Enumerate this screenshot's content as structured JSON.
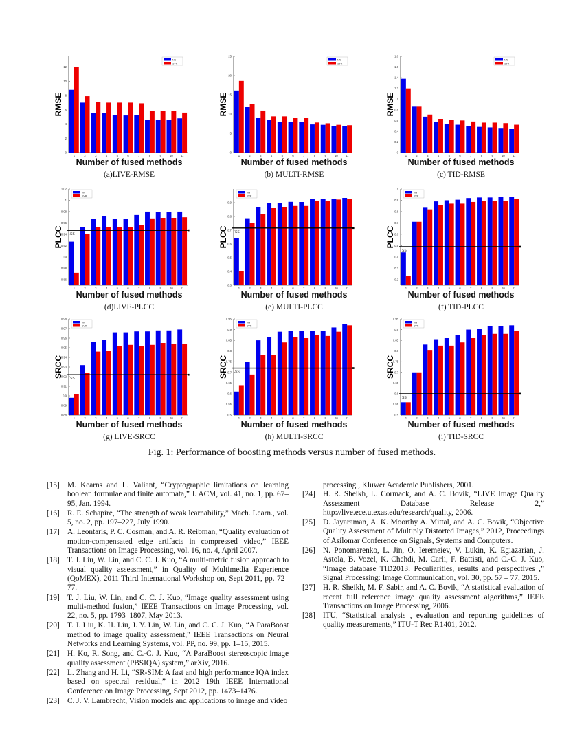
{
  "legend": [
    "NN",
    "SVR"
  ],
  "colors": {
    "NN": "#0000ee",
    "SVR": "#ee0000"
  },
  "x_title": "Number of fused methods",
  "chart_data": [
    {
      "type": "bar",
      "id": "live-rmse",
      "caption": "(a)LIVE-RMSE",
      "ylabel": "RMSE",
      "xlabel": "Number of fused methods",
      "categories": [
        "1",
        "2",
        "3",
        "4",
        "5",
        "6",
        "7",
        "8",
        "9",
        "10",
        "11"
      ],
      "ylim": [
        0,
        13.5
      ],
      "yticks": [
        0,
        2,
        4,
        6,
        8,
        10,
        12
      ],
      "legend": "top-right",
      "series": [
        {
          "name": "NN",
          "values": [
            8.8,
            7.0,
            5.5,
            5.5,
            5.3,
            5.2,
            5.3,
            4.6,
            4.6,
            4.6,
            4.8
          ]
        },
        {
          "name": "SVR",
          "values": [
            12.0,
            7.9,
            7.1,
            7.0,
            7.0,
            7.0,
            6.9,
            5.8,
            5.8,
            5.8,
            5.6
          ]
        }
      ]
    },
    {
      "type": "bar",
      "id": "multi-rmse",
      "caption": "(b) MULTI-RMSE",
      "ylabel": "RMSE",
      "xlabel": "Number of fused methods",
      "categories": [
        "1",
        "2",
        "3",
        "4",
        "5",
        "6",
        "7",
        "8",
        "9",
        "10",
        "11"
      ],
      "ylim": [
        0,
        25
      ],
      "yticks": [
        0,
        5,
        10,
        15,
        20,
        25
      ],
      "legend": "top-right",
      "series": [
        {
          "name": "NN",
          "values": [
            16.1,
            11.8,
            9.0,
            8.4,
            8.0,
            8.0,
            7.9,
            7.3,
            7.2,
            6.8,
            6.8
          ]
        },
        {
          "name": "SVR",
          "values": [
            18.6,
            12.5,
            10.9,
            9.4,
            9.4,
            9.1,
            9.0,
            7.8,
            7.6,
            7.2,
            7.1
          ]
        }
      ]
    },
    {
      "type": "bar",
      "id": "tid-rmse",
      "caption": "(c) TID-RMSE",
      "ylabel": "RMSE",
      "xlabel": "Number of fused methods",
      "categories": [
        "1",
        "2",
        "3",
        "4",
        "5",
        "6",
        "7",
        "8",
        "9",
        "10",
        "11"
      ],
      "ylim": [
        0,
        1.8
      ],
      "yticks": [
        0,
        0.2,
        0.4,
        0.6,
        0.8,
        1,
        1.2,
        1.4,
        1.6,
        1.8
      ],
      "legend": "top-right",
      "series": [
        {
          "name": "NN",
          "values": [
            1.38,
            0.87,
            0.67,
            0.57,
            0.54,
            0.52,
            0.49,
            0.48,
            0.47,
            0.46,
            0.45
          ]
        },
        {
          "name": "SVR",
          "values": [
            1.2,
            0.87,
            0.71,
            0.63,
            0.61,
            0.6,
            0.58,
            0.56,
            0.56,
            0.55,
            0.52
          ]
        }
      ]
    },
    {
      "type": "bar",
      "id": "live-plcc",
      "caption": "(d)LIVE-PLCC",
      "ylabel": "PLCC",
      "xlabel": "Number of fused methods",
      "categories": [
        "1",
        "2",
        "3",
        "4",
        "5",
        "6",
        "7",
        "8",
        "9",
        "10",
        "11"
      ],
      "ylim": [
        0.85,
        1.02
      ],
      "yticks": [
        0.86,
        0.88,
        0.9,
        0.92,
        0.94,
        0.96,
        0.98,
        1,
        1.02
      ],
      "legend": "top-left",
      "baseline": {
        "label": "SS",
        "value": 0.947
      },
      "series": [
        {
          "name": "NN",
          "values": [
            0.927,
            0.953,
            0.967,
            0.972,
            0.967,
            0.967,
            0.974,
            0.98,
            0.979,
            0.979,
            0.98
          ]
        },
        {
          "name": "SVR",
          "values": [
            0.872,
            0.94,
            0.953,
            0.952,
            0.952,
            0.953,
            0.956,
            0.968,
            0.969,
            0.969,
            0.97
          ]
        }
      ]
    },
    {
      "type": "bar",
      "id": "multi-plcc",
      "caption": "(e) MULTI-PLCC",
      "ylabel": "PLCC",
      "xlabel": "Number of fused methods",
      "categories": [
        "1",
        "2",
        "3",
        "4",
        "5",
        "6",
        "7",
        "8",
        "9",
        "10",
        "11"
      ],
      "ylim": [
        0.3,
        1.0
      ],
      "yticks": [
        0.3,
        0.4,
        0.5,
        0.6,
        0.7,
        0.8,
        0.9
      ],
      "legend": "top-left",
      "baseline": {
        "label": "SS",
        "value": 0.716
      },
      "series": [
        {
          "name": "NN",
          "values": [
            0.64,
            0.787,
            0.87,
            0.9,
            0.9,
            0.906,
            0.905,
            0.925,
            0.927,
            0.93,
            0.935
          ]
        },
        {
          "name": "SVR",
          "values": [
            0.405,
            0.75,
            0.815,
            0.86,
            0.87,
            0.876,
            0.876,
            0.91,
            0.915,
            0.923,
            0.927
          ]
        }
      ]
    },
    {
      "type": "bar",
      "id": "tid-plcc",
      "caption": "(f) TID-PLCC",
      "ylabel": "PLCC",
      "xlabel": "Number of fused methods",
      "categories": [
        "1",
        "2",
        "3",
        "4",
        "5",
        "6",
        "7",
        "8",
        "9",
        "10",
        "11"
      ],
      "ylim": [
        0.15,
        1.0
      ],
      "yticks": [
        0.2,
        0.3,
        0.4,
        0.5,
        0.6,
        0.7,
        0.8,
        0.9,
        1
      ],
      "legend": "top-left",
      "baseline": {
        "label": "SS",
        "value": 0.49
      },
      "series": [
        {
          "name": "NN",
          "values": [
            0.44,
            0.71,
            0.84,
            0.89,
            0.9,
            0.905,
            0.92,
            0.925,
            0.925,
            0.93,
            0.93
          ]
        },
        {
          "name": "SVR",
          "values": [
            0.23,
            0.71,
            0.82,
            0.86,
            0.87,
            0.87,
            0.885,
            0.895,
            0.895,
            0.895,
            0.91
          ]
        }
      ]
    },
    {
      "type": "bar",
      "id": "live-srcc",
      "caption": "(g) LIVE-SRCC",
      "ylabel": "SRCC",
      "xlabel": "Number of fused methods",
      "categories": [
        "1",
        "2",
        "3",
        "4",
        "5",
        "6",
        "7",
        "8",
        "9",
        "10",
        "11"
      ],
      "ylim": [
        0.88,
        0.98
      ],
      "yticks": [
        0.88,
        0.89,
        0.9,
        0.91,
        0.92,
        0.93,
        0.94,
        0.95,
        0.96,
        0.97,
        0.98
      ],
      "legend": "top-left",
      "baseline": {
        "label": "SS",
        "value": 0.922
      },
      "series": [
        {
          "name": "NN",
          "values": [
            0.898,
            0.932,
            0.956,
            0.958,
            0.966,
            0.966,
            0.967,
            0.967,
            0.968,
            0.968,
            0.969
          ]
        },
        {
          "name": "SVR",
          "values": [
            0.902,
            0.924,
            0.946,
            0.947,
            0.952,
            0.953,
            0.952,
            0.953,
            0.955,
            0.954,
            0.954
          ]
        }
      ]
    },
    {
      "type": "bar",
      "id": "multi-srcc",
      "caption": "(h) MULTI-SRCC",
      "ylabel": "SRCC",
      "xlabel": "Number of fused methods",
      "categories": [
        "1",
        "2",
        "3",
        "4",
        "5",
        "6",
        "7",
        "8",
        "9",
        "10",
        "11"
      ],
      "ylim": [
        0.5,
        0.95
      ],
      "yticks": [
        0.5,
        0.55,
        0.6,
        0.65,
        0.7,
        0.75,
        0.8,
        0.85,
        0.9,
        0.95
      ],
      "legend": "top-left",
      "baseline": {
        "label": "SS",
        "value": 0.72
      },
      "series": [
        {
          "name": "NN",
          "values": [
            0.61,
            0.75,
            0.85,
            0.865,
            0.89,
            0.895,
            0.895,
            0.895,
            0.895,
            0.91,
            0.925
          ]
        },
        {
          "name": "SVR",
          "values": [
            0.64,
            0.69,
            0.78,
            0.78,
            0.84,
            0.865,
            0.86,
            0.875,
            0.87,
            0.89,
            0.92
          ]
        }
      ]
    },
    {
      "type": "bar",
      "id": "tid-srcc",
      "caption": "(i) TID-SRCC",
      "ylabel": "SRCC",
      "xlabel": "Number of fused methods",
      "categories": [
        "1",
        "2",
        "3",
        "4",
        "5",
        "6",
        "7",
        "8",
        "9",
        "10",
        "11"
      ],
      "ylim": [
        0.5,
        0.95
      ],
      "yticks": [
        0.5,
        0.55,
        0.6,
        0.65,
        0.7,
        0.75,
        0.8,
        0.85,
        0.9,
        0.95
      ],
      "legend": "top-left",
      "baseline": {
        "label": "SS",
        "value": 0.6
      },
      "series": [
        {
          "name": "NN",
          "values": [
            0.56,
            0.7,
            0.83,
            0.855,
            0.86,
            0.875,
            0.9,
            0.905,
            0.915,
            0.915,
            0.92
          ]
        },
        {
          "name": "SVR",
          "values": [
            0.56,
            0.7,
            0.805,
            0.825,
            0.825,
            0.84,
            0.86,
            0.875,
            0.88,
            0.88,
            0.895
          ]
        }
      ]
    }
  ],
  "figure_caption": "Fig. 1: Performance of boosting methods versus number of fused methods.",
  "references_left": [
    {
      "num": "[15]",
      "text": "M. Kearns and L. Valiant, “Cryptographic limitations on learning boolean formulae and finite automata,” J. ACM, vol. 41, no. 1, pp. 67–95, Jan. 1994."
    },
    {
      "num": "[16]",
      "text": "R. E. Schapire, “The strength of weak learnability,” Mach. Learn., vol. 5, no. 2, pp. 197–227, July 1990."
    },
    {
      "num": "[17]",
      "text": "A. Leontaris, P. C. Cosman, and A. R. Reibman, “Quality evaluation of motion-compensated edge artifacts in compressed video,” IEEE Transactions on Image Processing, vol. 16, no. 4, April 2007."
    },
    {
      "num": "[18]",
      "text": "T. J. Liu, W. Lin, and C. C. J. Kuo, “A multi-metric fusion approach to visual quality assessment,” in Quality of Multimedia Experience (QoMEX), 2011 Third International Workshop on, Sept 2011, pp. 72–77."
    },
    {
      "num": "[19]",
      "text": "T. J. Liu, W. Lin, and C. C. J. Kuo, “Image quality assessment using multi-method fusion,” IEEE Transactions on Image Processing, vol. 22, no. 5, pp. 1793–1807, May 2013."
    },
    {
      "num": "[20]",
      "text": "T. J. Liu, K. H. Liu, J. Y. Lin, W. Lin, and C. C. J. Kuo, “A ParaBoost method to image quality assessment,” IEEE Transactions on Neural Networks and Learning Systems, vol. PP, no. 99, pp. 1–15, 2015."
    },
    {
      "num": "[21]",
      "text": "H. Ko, R. Song, and C.-C. J. Kuo, “A ParaBoost stereoscopic image quality assessment (PBSIQA) system,” arXiv, 2016."
    },
    {
      "num": "[22]",
      "text": "L. Zhang and H. Li, “SR-SIM: A fast and high performance IQA index based on spectral residual,” in 2012 19th IEEE International Conference on Image Processing, Sept 2012, pp. 1473–1476."
    },
    {
      "num": "[23]",
      "text": "C. J. V. Lambrecht, Vision models and applications to image and video"
    }
  ],
  "references_right_continuation": "processing , Kluwer Academic Publishers, 2001.",
  "references_right": [
    {
      "num": "[24]",
      "text": "H. R. Sheikh, L. Cormack, and A. C. Bovik, “LIVE Image Quality Assessment Database Release 2,” http://live.ece.utexas.edu/research/quality, 2006."
    },
    {
      "num": "[25]",
      "text": "D. Jayaraman, A. K. Moorthy A. Mittal, and A. C. Bovik, “Objective Quality Assessment of Multiply Distorted Images,” 2012, Proceedings of Asilomar Conference on Signals, Systems and Computers."
    },
    {
      "num": "[26]",
      "text": "N. Ponomarenko, L. Jin, O. Ieremeiev, V. Lukin, K. Egiazarian, J. Astola, B. Vozel, K. Chehdi, M. Carli, F. Battisti, and C.-C. J. Kuo, “Image database TID2013: Peculiarities, results and perspectives ,” Signal Processing: Image Communication, vol. 30, pp. 57 – 77, 2015."
    },
    {
      "num": "[27]",
      "text": "H. R. Sheikh, M. F. Sabir, and A. C. Bovik, “A statistical evaluation of recent full reference image quality assessment algorithms,” IEEE Transactions on Image Processing, 2006."
    },
    {
      "num": "[28]",
      "text": "ITU, “Statistical analysis , evaluation and reporting guidelines of quality measurements,” ITU-T Rec P.1401, 2012."
    }
  ]
}
